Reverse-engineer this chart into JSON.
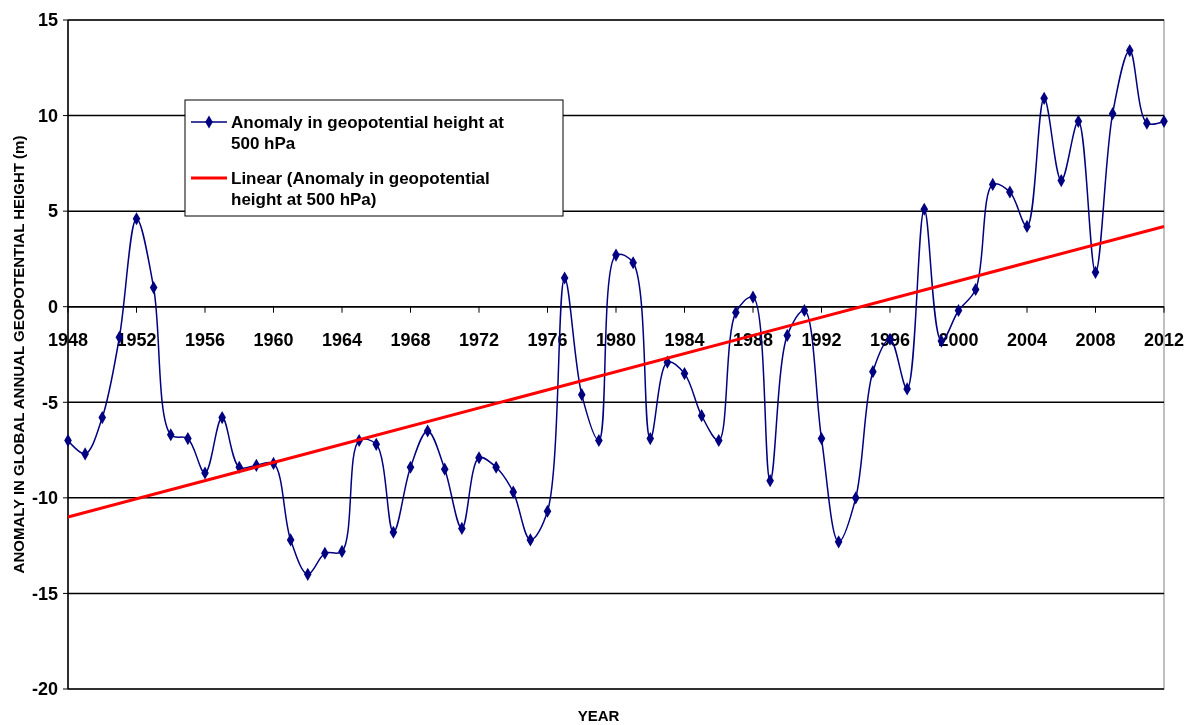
{
  "chart_data": {
    "type": "line",
    "xlabel": "YEAR",
    "ylabel": "ANOMALY IN GLOBAL ANNUAL GEOPOTENTIAL HEIGHT (m)",
    "xlim": [
      1948,
      2012
    ],
    "xticks": [
      1948,
      1952,
      1956,
      1960,
      1964,
      1968,
      1972,
      1976,
      1980,
      1984,
      1988,
      1992,
      1996,
      2000,
      2004,
      2008,
      2012
    ],
    "ylim": [
      -20,
      15
    ],
    "yticks": [
      -20,
      -15,
      -10,
      -5,
      0,
      5,
      10,
      15
    ],
    "grid": "y",
    "legend": "top left",
    "series": [
      {
        "name": "Anomaly in geopotential height at 500 hPa",
        "color": "#000080",
        "marker": "diamond",
        "x": [
          1948,
          1949,
          1950,
          1951,
          1952,
          1953,
          1954,
          1955,
          1956,
          1957,
          1958,
          1959,
          1960,
          1961,
          1962,
          1963,
          1964,
          1965,
          1966,
          1967,
          1968,
          1969,
          1970,
          1971,
          1972,
          1973,
          1974,
          1975,
          1976,
          1977,
          1978,
          1979,
          1980,
          1981,
          1982,
          1983,
          1984,
          1985,
          1986,
          1987,
          1988,
          1989,
          1990,
          1991,
          1992,
          1993,
          1994,
          1995,
          1996,
          1997,
          1998,
          1999,
          2000,
          2001,
          2002,
          2003,
          2004,
          2005,
          2006,
          2007,
          2008,
          2009,
          2010,
          2011,
          2012
        ],
        "values": [
          -7.0,
          -7.7,
          -5.8,
          -1.6,
          4.6,
          1.0,
          -6.7,
          -6.9,
          -8.7,
          -5.8,
          -8.4,
          -8.3,
          -8.2,
          -12.2,
          -14.0,
          -12.9,
          -12.8,
          -7.0,
          -7.2,
          -11.8,
          -8.4,
          -6.5,
          -8.5,
          -11.6,
          -7.9,
          -8.4,
          -9.7,
          -12.2,
          -10.7,
          1.5,
          -4.6,
          -7.0,
          2.7,
          2.3,
          -6.9,
          -2.9,
          -3.5,
          -5.7,
          -7.0,
          -0.3,
          0.5,
          -9.1,
          -1.5,
          -0.2,
          -6.9,
          -12.3,
          -10.0,
          -3.4,
          -1.7,
          -4.3,
          5.1,
          -1.8,
          -0.2,
          0.9,
          6.4,
          6.0,
          4.2,
          10.9,
          6.6,
          9.7,
          1.8,
          10.1,
          13.4,
          9.6,
          9.7
        ]
      },
      {
        "name": "Linear (Anomaly in geopotential height at 500 hPa)",
        "color": "#ff0000",
        "marker": "none",
        "x": [
          1948,
          2012
        ],
        "values": [
          -11.0,
          4.2
        ]
      }
    ]
  }
}
